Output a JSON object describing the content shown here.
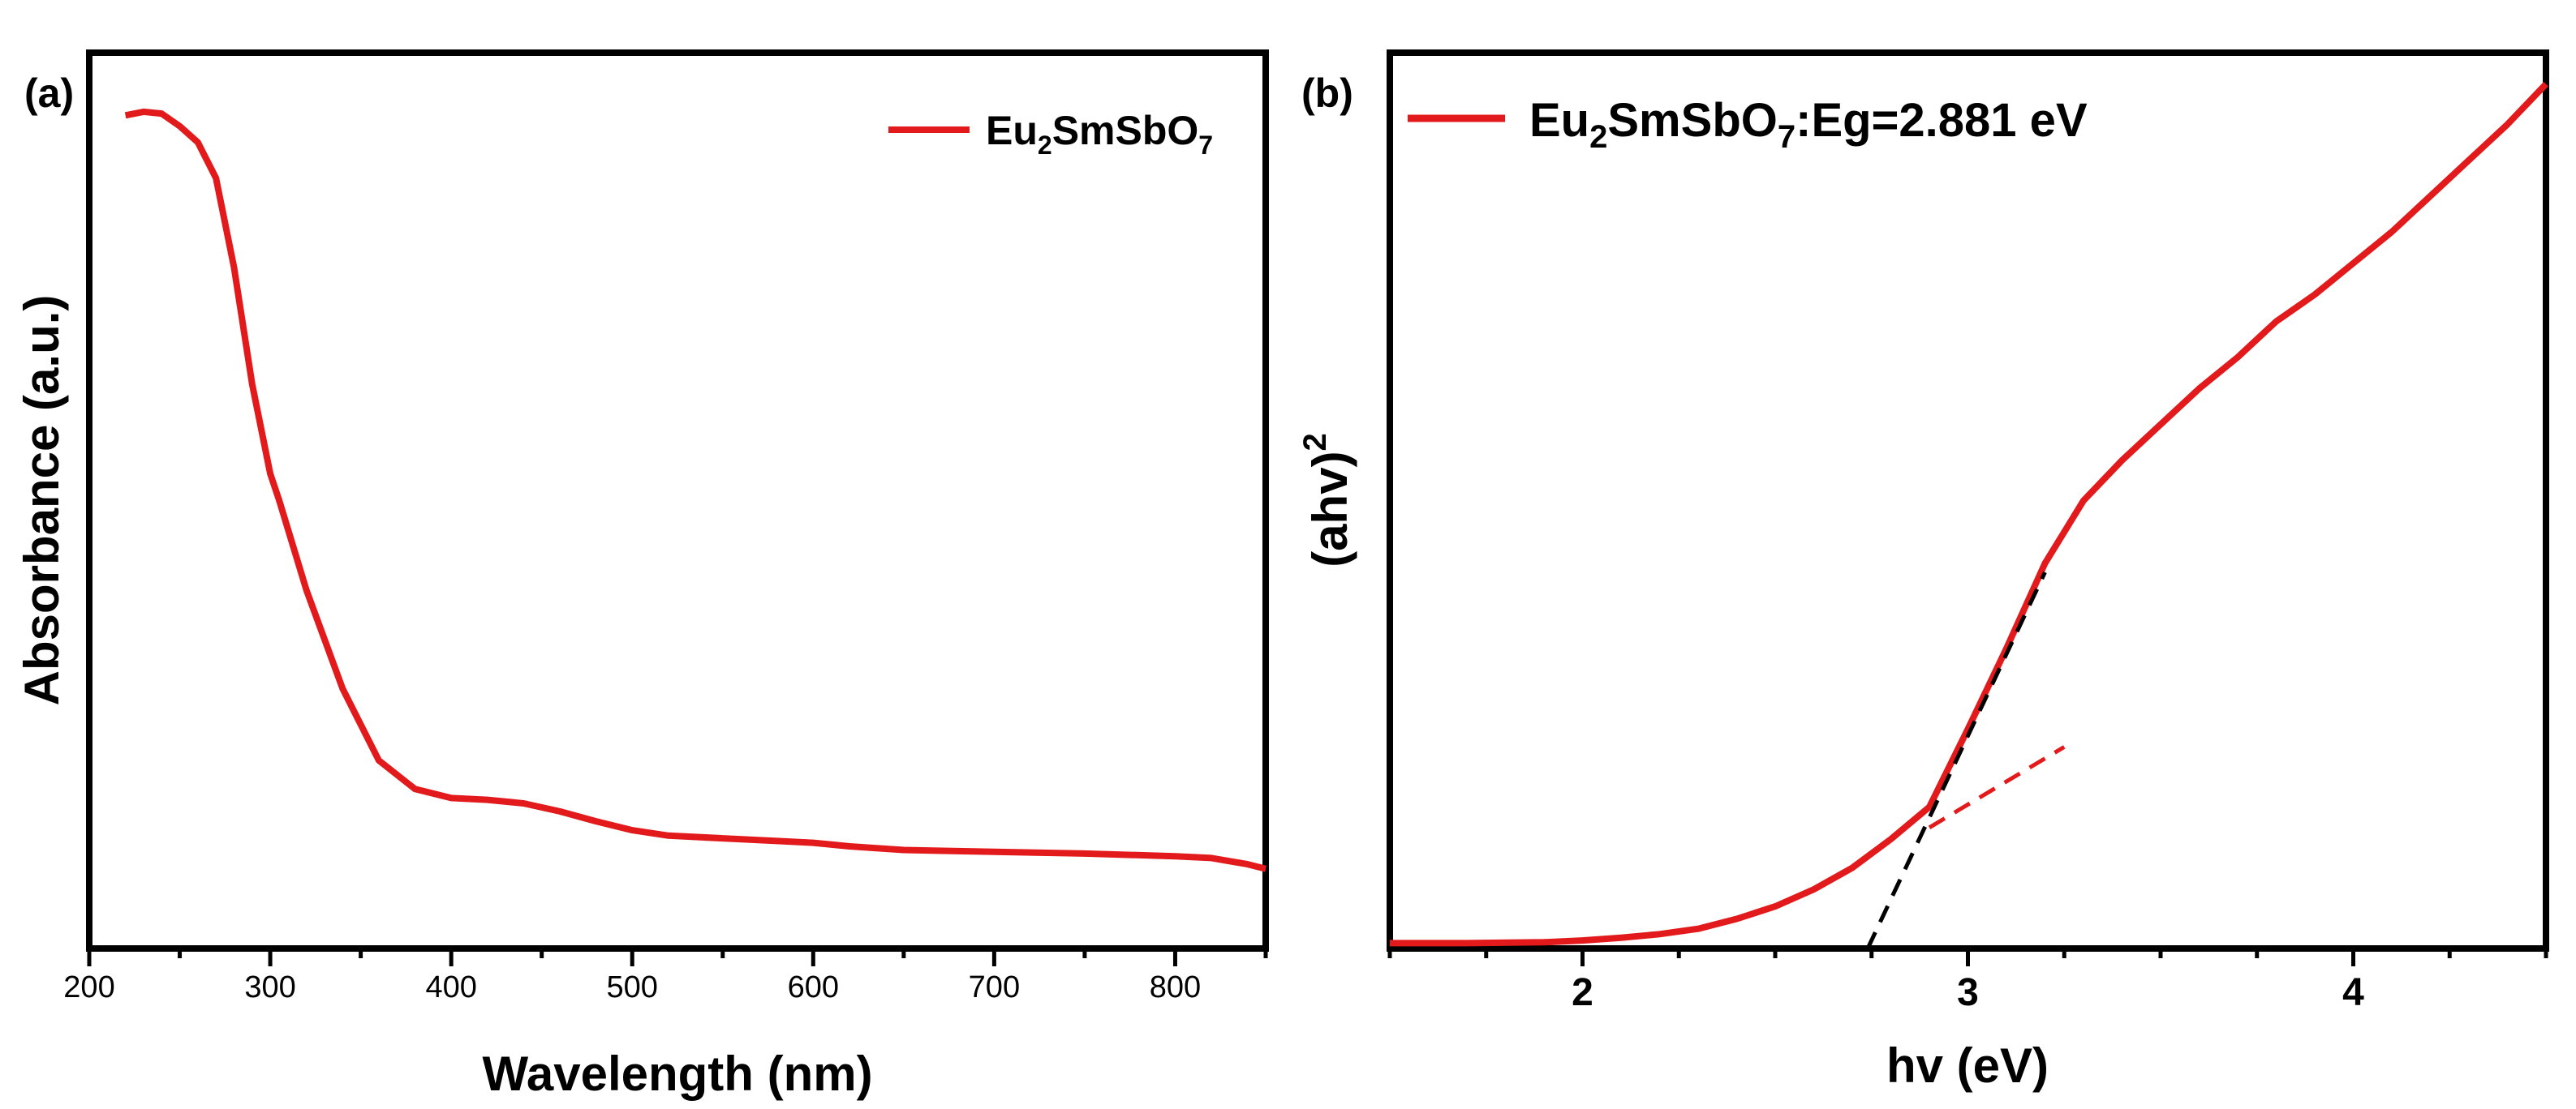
{
  "colors": {
    "series": "#e31a1c",
    "fit": "#000000",
    "axis": "#000000"
  },
  "chart_data": [
    {
      "panel": "(a)",
      "type": "line",
      "xlabel": "Wavelength (nm)",
      "ylabel": "Absorbance (a.u.)",
      "xlim": [
        200,
        850
      ],
      "ylim": [
        0,
        1.0
      ],
      "xticks": [
        200,
        300,
        400,
        500,
        600,
        700,
        800
      ],
      "y_ticks_shown": false,
      "legend": {
        "position": "top-right",
        "label_parts": [
          "Eu",
          "2",
          "SmSbO",
          "7"
        ]
      },
      "series": [
        {
          "name": "Eu2SmSbO7",
          "x": [
            220,
            230,
            240,
            250,
            260,
            270,
            280,
            290,
            300,
            305,
            320,
            340,
            360,
            380,
            400,
            420,
            440,
            460,
            480,
            500,
            520,
            550,
            580,
            600,
            620,
            650,
            700,
            750,
            800,
            820,
            840,
            850
          ],
          "y": [
            0.93,
            0.934,
            0.932,
            0.918,
            0.9,
            0.86,
            0.76,
            0.63,
            0.53,
            0.5,
            0.4,
            0.29,
            0.21,
            0.178,
            0.168,
            0.166,
            0.162,
            0.153,
            0.142,
            0.132,
            0.126,
            0.123,
            0.12,
            0.118,
            0.114,
            0.11,
            0.108,
            0.106,
            0.103,
            0.101,
            0.094,
            0.089
          ]
        }
      ]
    },
    {
      "panel": "(b)",
      "type": "line",
      "xlabel": "hv (eV)",
      "ylabel_parts": [
        "(ahv)",
        "2"
      ],
      "xlim": [
        1.5,
        4.5
      ],
      "ylim": [
        0,
        1.0
      ],
      "xticks": [
        2,
        3,
        4
      ],
      "y_ticks_shown": false,
      "legend": {
        "position": "top-left",
        "label_parts": [
          "Eu",
          "2",
          "SmSbO",
          "7",
          ":Eg=2.881 eV"
        ]
      },
      "bandgap_eV": 2.881,
      "series": [
        {
          "name": "Eu2SmSbO7:Eg=2.881 eV",
          "x": [
            1.5,
            1.7,
            1.9,
            2.0,
            2.1,
            2.2,
            2.3,
            2.4,
            2.5,
            2.6,
            2.7,
            2.8,
            2.9,
            3.0,
            3.05,
            3.1,
            3.2,
            3.3,
            3.4,
            3.5,
            3.6,
            3.7,
            3.8,
            3.9,
            4.0,
            4.1,
            4.2,
            4.3,
            4.4,
            4.5
          ],
          "y": [
            0.006,
            0.006,
            0.007,
            0.009,
            0.012,
            0.016,
            0.022,
            0.033,
            0.047,
            0.066,
            0.09,
            0.122,
            0.158,
            0.245,
            0.29,
            0.335,
            0.43,
            0.5,
            0.545,
            0.585,
            0.625,
            0.66,
            0.7,
            0.73,
            0.765,
            0.8,
            0.84,
            0.88,
            0.92,
            0.965
          ]
        }
      ],
      "fit_lines": [
        {
          "name": "tangent",
          "style": "dashed",
          "color": "black",
          "x": [
            2.74,
            3.2
          ],
          "y": [
            0.0,
            0.42
          ]
        },
        {
          "name": "baseline",
          "style": "dashed",
          "color": "red",
          "x": [
            2.9,
            3.25
          ],
          "y": [
            0.135,
            0.225
          ]
        }
      ]
    }
  ]
}
